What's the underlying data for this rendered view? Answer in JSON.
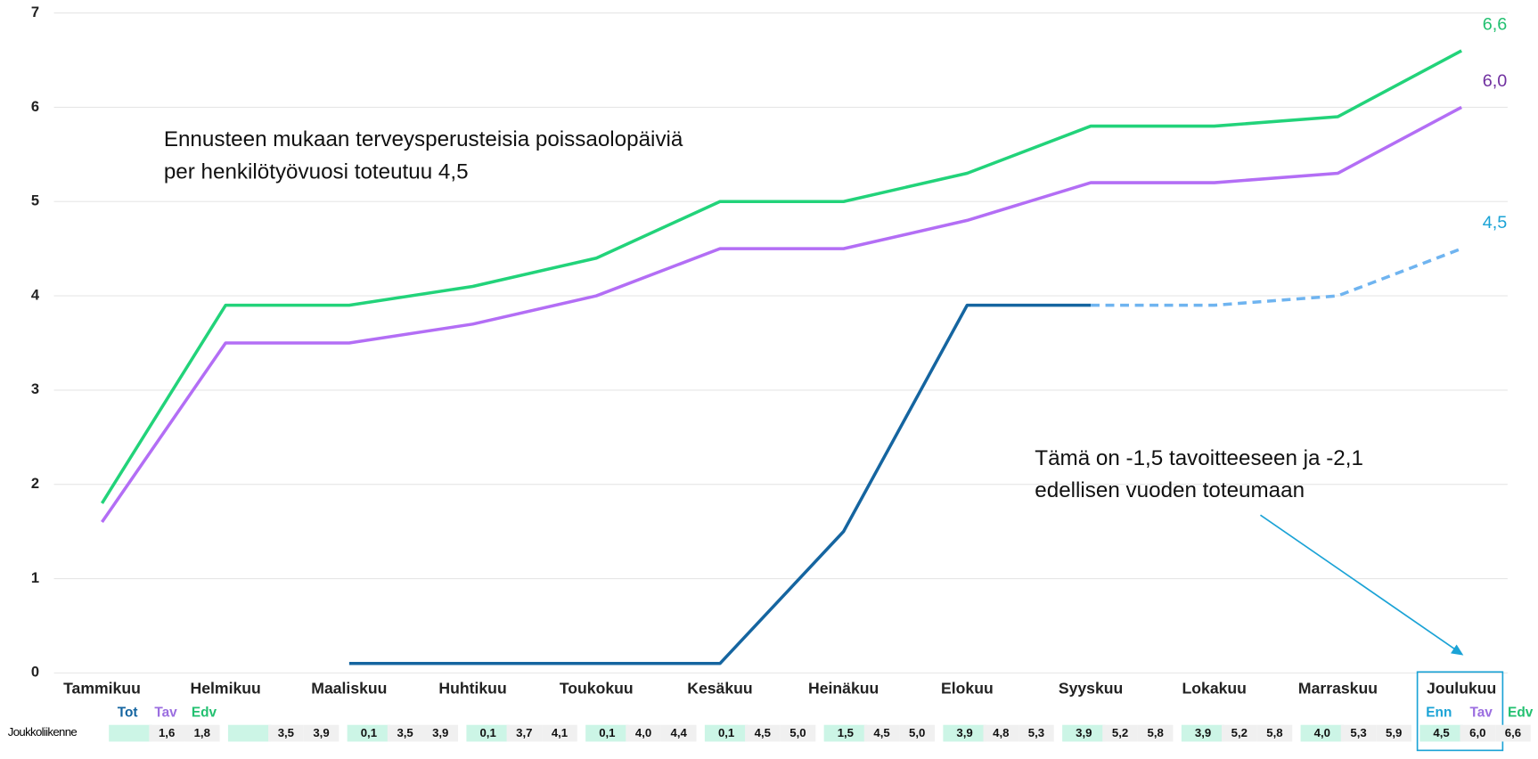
{
  "chart_data": {
    "type": "line",
    "categories": [
      "Tammikuu",
      "Helmikuu",
      "Maaliskuu",
      "Huhtikuu",
      "Toukokuu",
      "Kesäkuu",
      "Heinäkuu",
      "Elokuu",
      "Syyskuu",
      "Lokakuu",
      "Marraskuu",
      "Joulukuu"
    ],
    "ylim": [
      0,
      7
    ],
    "yticks": [
      0,
      1,
      2,
      3,
      4,
      5,
      6,
      7
    ],
    "grid": true,
    "series": [
      {
        "name": "Edv",
        "color": "#22d37a",
        "label_color": "#22c070",
        "values": [
          1.8,
          3.9,
          3.9,
          4.1,
          4.4,
          5.0,
          5.0,
          5.3,
          5.8,
          5.8,
          5.9,
          6.6
        ],
        "value_labels": [
          null,
          null,
          null,
          null,
          null,
          null,
          null,
          null,
          null,
          null,
          null,
          "6,6"
        ]
      },
      {
        "name": "Tav",
        "color": "#b36ef5",
        "label_color": "#7030a0",
        "values": [
          1.6,
          3.5,
          3.5,
          3.7,
          4.0,
          4.5,
          4.5,
          4.8,
          5.2,
          5.2,
          5.3,
          6.0
        ],
        "value_labels": [
          null,
          null,
          null,
          null,
          null,
          null,
          null,
          null,
          null,
          null,
          null,
          "6,0"
        ]
      },
      {
        "name": "Tot",
        "color": "#1565a0",
        "values": [
          null,
          null,
          0.1,
          0.1,
          0.1,
          0.1,
          1.5,
          3.9,
          3.9,
          null,
          null,
          null
        ]
      },
      {
        "name": "Enn",
        "color": "#6fb4f0",
        "dashed": true,
        "label_color": "#1ba3d6",
        "values": [
          null,
          null,
          null,
          null,
          null,
          null,
          null,
          null,
          3.9,
          3.9,
          4.0,
          4.5
        ],
        "value_labels": [
          null,
          null,
          null,
          null,
          null,
          null,
          null,
          null,
          null,
          null,
          null,
          "4,5"
        ]
      }
    ],
    "annotations": [
      {
        "lines": [
          "Ennusteen mukaan terveysperusteisia poissaolopäiviä",
          "per henkilötyövuosi toteutuu 4,5"
        ]
      },
      {
        "lines": [
          "Tämä on -1,5 tavoitteeseen ja -2,1",
          "edellisen vuoden toteumaan"
        ]
      }
    ]
  },
  "table": {
    "row_label": "Joukkoliikenne",
    "cells": [
      [
        null,
        "1,6",
        "1,8"
      ],
      [
        null,
        "3,5",
        "3,9"
      ],
      [
        "0,1",
        "3,5",
        "3,9"
      ],
      [
        "0,1",
        "3,7",
        "4,1"
      ],
      [
        "0,1",
        "4,0",
        "4,4"
      ],
      [
        "0,1",
        "4,5",
        "5,0"
      ],
      [
        "1,5",
        "4,5",
        "5,0"
      ],
      [
        "3,9",
        "4,8",
        "5,3"
      ],
      [
        "3,9",
        "5,2",
        "5,8"
      ],
      [
        "3,9",
        "5,2",
        "5,8"
      ],
      [
        "4,0",
        "5,3",
        "5,9"
      ],
      [
        "4,5",
        "6,0",
        "6,6"
      ]
    ]
  }
}
